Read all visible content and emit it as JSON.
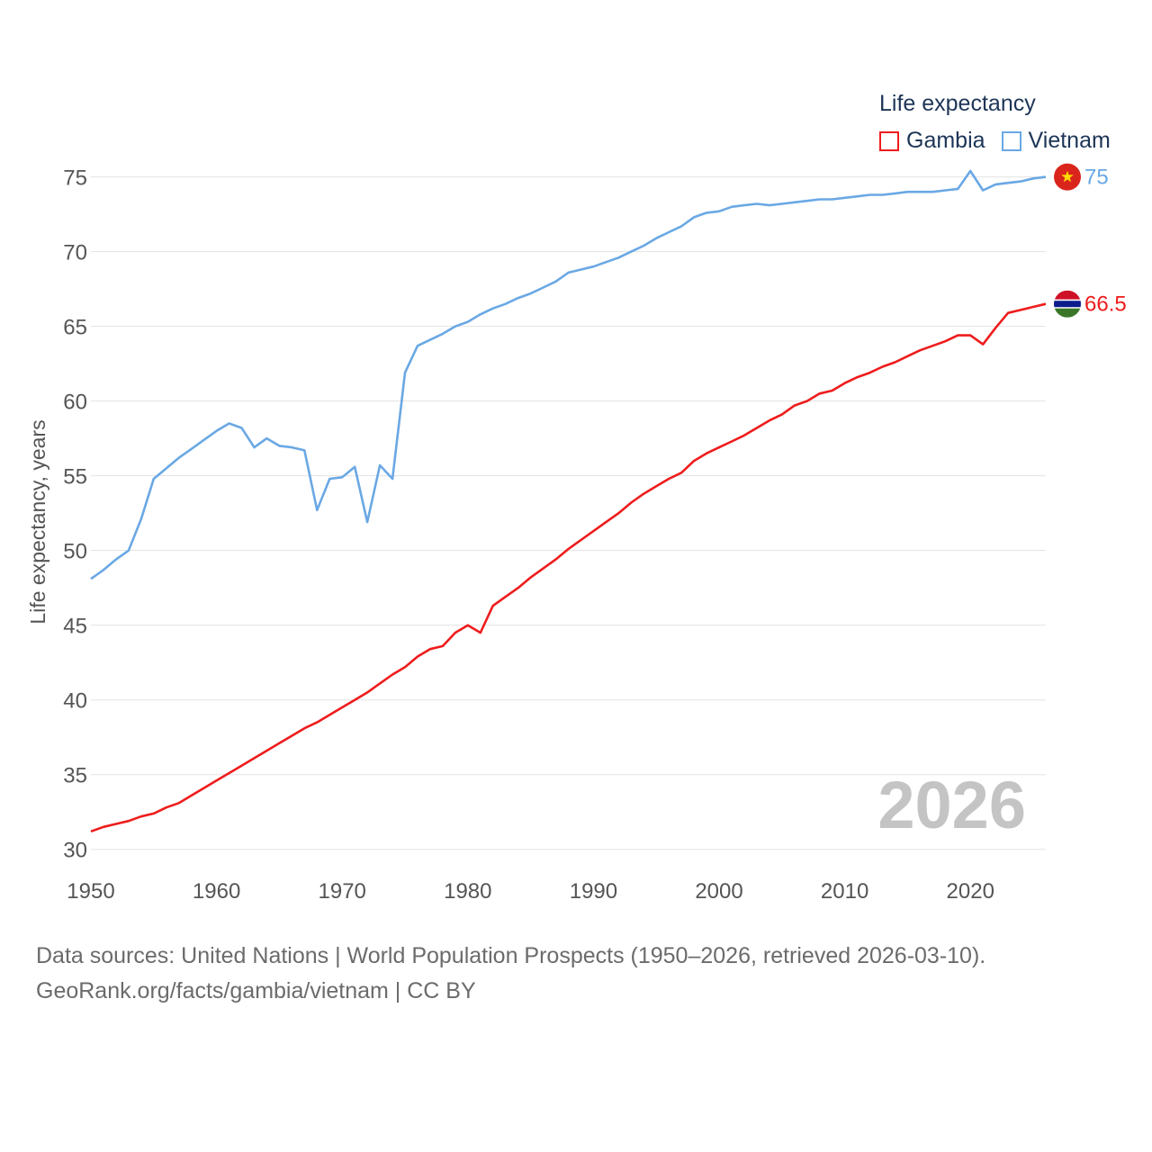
{
  "legend": {
    "title": "Life expectancy",
    "items": [
      {
        "name": "Gambia",
        "color": "#ee1c1c"
      },
      {
        "name": "Vietnam",
        "color": "#6aa8e4"
      }
    ]
  },
  "source": {
    "line1": "Data sources: United Nations | World Population Prospects (1950–2026, retrieved 2026-03-10).",
    "line2": "GeoRank.org/facts/gambia/vietnam | CC BY"
  },
  "chart_data": {
    "type": "line",
    "title": "",
    "xlabel": "",
    "ylabel": "Life expectancy, years",
    "year_watermark": "2026",
    "xlim": [
      1950,
      2026
    ],
    "ylim": [
      29.2,
      76
    ],
    "x_ticks": [
      1950,
      1960,
      1970,
      1980,
      1990,
      2000,
      2010,
      2020
    ],
    "y_ticks": [
      30,
      35,
      40,
      45,
      50,
      55,
      60,
      65,
      70,
      75
    ],
    "grid": "horizontal",
    "legend_position": "top-right",
    "x": [
      1950,
      1951,
      1952,
      1953,
      1954,
      1955,
      1956,
      1957,
      1958,
      1959,
      1960,
      1961,
      1962,
      1963,
      1964,
      1965,
      1966,
      1967,
      1968,
      1969,
      1970,
      1971,
      1972,
      1973,
      1974,
      1975,
      1976,
      1977,
      1978,
      1979,
      1980,
      1981,
      1982,
      1983,
      1984,
      1985,
      1986,
      1987,
      1988,
      1989,
      1990,
      1991,
      1992,
      1993,
      1994,
      1995,
      1996,
      1997,
      1998,
      1999,
      2000,
      2001,
      2002,
      2003,
      2004,
      2005,
      2006,
      2007,
      2008,
      2009,
      2010,
      2011,
      2012,
      2013,
      2014,
      2015,
      2016,
      2017,
      2018,
      2019,
      2020,
      2021,
      2022,
      2023,
      2024,
      2025,
      2026
    ],
    "series": [
      {
        "name": "Gambia",
        "color": "#ee1c1c",
        "end_label": "66.5",
        "flag": "gambia-flag",
        "values": [
          31.2,
          31.5,
          31.7,
          31.9,
          32.2,
          32.4,
          32.8,
          33.1,
          33.6,
          34.1,
          34.6,
          35.1,
          35.6,
          36.1,
          36.6,
          37.1,
          37.6,
          38.1,
          38.5,
          39.0,
          39.5,
          40.0,
          40.5,
          41.1,
          41.7,
          42.2,
          42.9,
          43.4,
          43.6,
          44.5,
          45.0,
          44.5,
          46.3,
          46.9,
          47.5,
          48.2,
          48.8,
          49.4,
          50.1,
          50.7,
          51.3,
          51.9,
          52.5,
          53.2,
          53.8,
          54.3,
          54.8,
          55.2,
          56.0,
          56.5,
          56.9,
          57.3,
          57.7,
          58.2,
          58.7,
          59.1,
          59.7,
          60.0,
          60.5,
          60.7,
          61.2,
          61.6,
          61.9,
          62.3,
          62.6,
          63.0,
          63.4,
          63.7,
          64.0,
          64.4,
          64.4,
          63.8,
          64.9,
          65.9,
          66.1,
          66.3,
          66.5
        ]
      },
      {
        "name": "Vietnam",
        "color": "#6aa8e4",
        "end_label": "75",
        "flag": "vietnam-flag",
        "values": [
          48.1,
          48.7,
          49.4,
          50.0,
          52.1,
          54.8,
          55.5,
          56.2,
          56.8,
          57.4,
          58.0,
          58.5,
          58.2,
          56.9,
          57.5,
          57.0,
          56.9,
          56.7,
          52.7,
          54.8,
          54.9,
          55.6,
          51.9,
          55.7,
          54.8,
          61.9,
          63.7,
          64.1,
          64.5,
          65.0,
          65.3,
          65.8,
          66.2,
          66.5,
          66.9,
          67.2,
          67.6,
          68.0,
          68.6,
          68.8,
          69.0,
          69.3,
          69.6,
          70.0,
          70.4,
          70.9,
          71.3,
          71.7,
          72.3,
          72.6,
          72.7,
          73.0,
          73.1,
          73.2,
          73.1,
          73.2,
          73.3,
          73.4,
          73.5,
          73.5,
          73.6,
          73.7,
          73.8,
          73.8,
          73.9,
          74.0,
          74.0,
          74.0,
          74.1,
          74.2,
          75.4,
          74.1,
          74.5,
          74.6,
          74.7,
          74.9,
          75.0
        ]
      }
    ]
  }
}
